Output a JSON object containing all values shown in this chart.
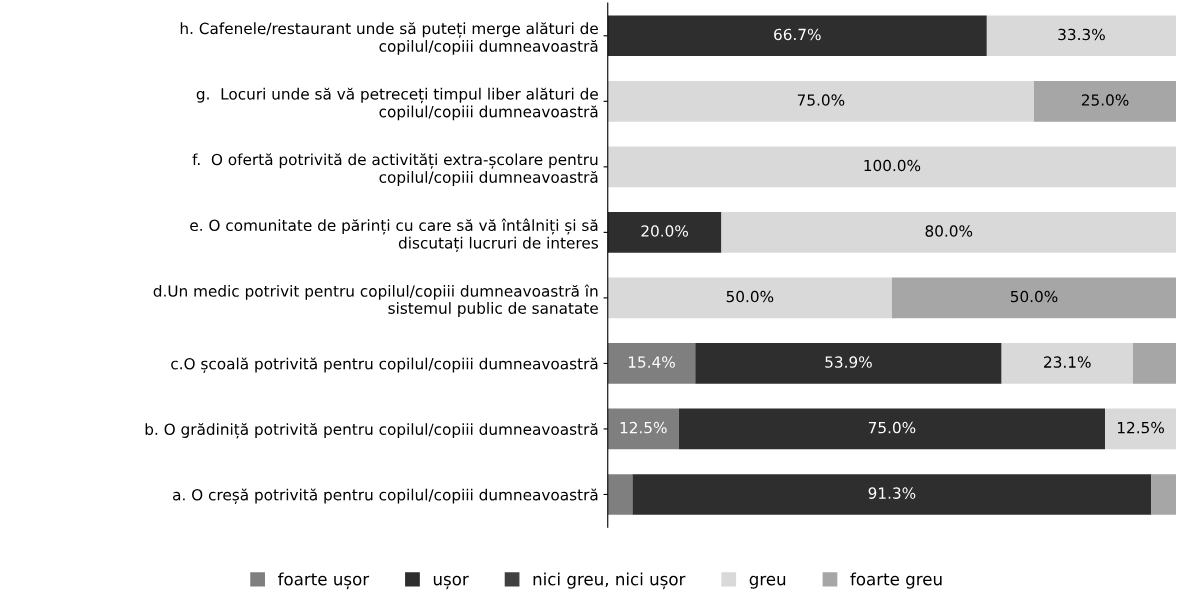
{
  "chart_data": {
    "type": "bar",
    "orientation": "horizontal",
    "stacked": true,
    "xlim": [
      0,
      100
    ],
    "tick_labels": "y",
    "legend": "bottom",
    "grid": false,
    "categories": [
      "h. Cafenele/restaurant unde să puteți merge alături de\ncopilul/copiii dumneavoastră",
      "g.  Locuri unde să vă petreceți timpul liber alături de\ncopilul/copiii dumneavoastră",
      "f.  O ofertă potrivită de activități extra-școlare pentru\ncopilul/copiii dumneavoastră",
      "e. O comunitate de părinți cu care să vă întâlniți și să\ndiscutați lucruri de interes",
      "d.Un medic potrivit pentru copilul/copiii dumneavoastră în\nsistemul public de sanatate",
      "c.O școală potrivită pentru copilul/copiii dumneavoastră",
      "b. O grădiniță potrivită pentru copilul/copiii dumneavoastră",
      "a. O creșă potrivită pentru copilul/copiii dumneavoastră"
    ],
    "series": [
      {
        "name": "foarte ușor",
        "color": "#7f7f7f",
        "values": [
          0,
          0,
          0,
          0,
          0,
          15.4,
          12.5,
          4.35
        ],
        "value_labels": [
          null,
          null,
          null,
          null,
          null,
          "15.4%",
          "12.5%",
          null
        ]
      },
      {
        "name": "ușor",
        "color": "#2e2e2e",
        "values": [
          66.7,
          0,
          0,
          20.0,
          0,
          53.9,
          75.0,
          91.3
        ],
        "value_labels": [
          "66.7%",
          null,
          null,
          "20.0%",
          null,
          "53.9%",
          "75.0%",
          "91.3%"
        ]
      },
      {
        "name": "nici greu, nici ușor",
        "color": "#404040",
        "values": [
          0,
          0,
          0,
          0,
          0,
          0,
          0,
          0
        ],
        "value_labels": [
          null,
          null,
          null,
          null,
          null,
          null,
          null,
          null
        ]
      },
      {
        "name": "greu",
        "color": "#d9d9d9",
        "values": [
          33.3,
          75.0,
          100.0,
          80.0,
          50.0,
          23.1,
          12.5,
          0
        ],
        "value_labels": [
          "33.3%",
          "75.0%",
          "100.0%",
          "80.0%",
          "50.0%",
          "23.1%",
          "12.5%",
          null
        ]
      },
      {
        "name": "foarte greu",
        "color": "#a6a6a6",
        "values": [
          0,
          25.0,
          0,
          0,
          50.0,
          7.6,
          0,
          4.35
        ],
        "value_labels": [
          null,
          "25.0%",
          null,
          null,
          "50.0%",
          null,
          null,
          null
        ]
      }
    ]
  }
}
